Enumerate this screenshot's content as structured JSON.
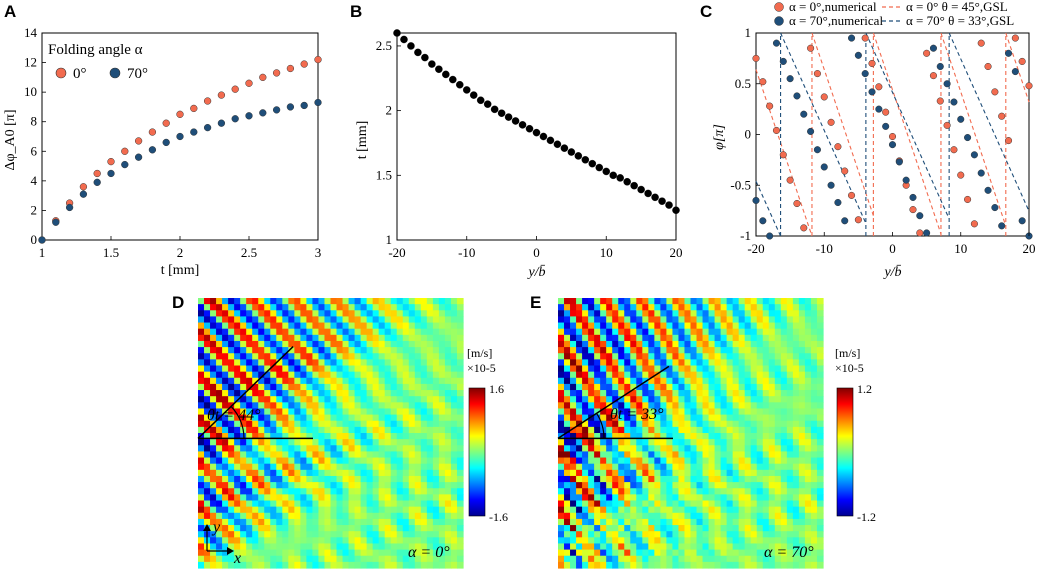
{
  "panels": {
    "A": {
      "letter": "A"
    },
    "B": {
      "letter": "B"
    },
    "C": {
      "letter": "C"
    },
    "D": {
      "letter": "D"
    },
    "E": {
      "letter": "E"
    }
  },
  "colors": {
    "orange": "#f26b4f",
    "blue": "#1f4e79",
    "black": "#000000"
  },
  "chart_data": [
    {
      "id": "A",
      "type": "scatter",
      "xlabel": "t [mm]",
      "ylabel": "Δφ_A0 [π]",
      "xlim": [
        1,
        3
      ],
      "ylim": [
        0,
        14
      ],
      "xticks": [
        "1",
        "1.5",
        "2",
        "2.5",
        "3"
      ],
      "yticks": [
        "0",
        "2",
        "4",
        "6",
        "8",
        "10",
        "12",
        "14"
      ],
      "legend_title": "Folding angle α",
      "series": [
        {
          "name": "0°",
          "color": "#f26b4f",
          "x": [
            1.0,
            1.1,
            1.2,
            1.3,
            1.4,
            1.5,
            1.6,
            1.7,
            1.8,
            1.9,
            2.0,
            2.1,
            2.2,
            2.3,
            2.4,
            2.5,
            2.6,
            2.7,
            2.8,
            2.9,
            3.0
          ],
          "y": [
            0.0,
            1.3,
            2.5,
            3.6,
            4.5,
            5.3,
            6.0,
            6.7,
            7.3,
            7.9,
            8.5,
            8.9,
            9.4,
            9.8,
            10.2,
            10.6,
            11.0,
            11.3,
            11.6,
            11.9,
            12.2
          ]
        },
        {
          "name": "70°",
          "color": "#1f4e79",
          "x": [
            1.0,
            1.1,
            1.2,
            1.3,
            1.4,
            1.5,
            1.6,
            1.7,
            1.8,
            1.9,
            2.0,
            2.1,
            2.2,
            2.3,
            2.4,
            2.5,
            2.6,
            2.7,
            2.8,
            2.9,
            3.0
          ],
          "y": [
            0.0,
            1.2,
            2.2,
            3.1,
            3.9,
            4.5,
            5.1,
            5.6,
            6.1,
            6.6,
            7.0,
            7.3,
            7.6,
            7.9,
            8.2,
            8.4,
            8.6,
            8.8,
            9.0,
            9.1,
            9.3
          ]
        }
      ]
    },
    {
      "id": "B",
      "type": "scatter",
      "xlabel": "y/b̄",
      "ylabel": "t [mm]",
      "xlim": [
        -20,
        20
      ],
      "ylim": [
        1,
        2.6
      ],
      "xticks": [
        "-20",
        "-10",
        "0",
        "10",
        "20"
      ],
      "yticks": [
        "1",
        "1.5",
        "2",
        "2.5"
      ],
      "series": [
        {
          "name": "t",
          "color": "#000000",
          "x": [
            -20,
            -19,
            -18,
            -17,
            -16,
            -15,
            -14,
            -13,
            -12,
            -11,
            -10,
            -9,
            -8,
            -7,
            -6,
            -5,
            -4,
            -3,
            -2,
            -1,
            0,
            1,
            2,
            3,
            4,
            5,
            6,
            7,
            8,
            9,
            10,
            11,
            12,
            13,
            14,
            15,
            16,
            17,
            18,
            19,
            20
          ],
          "y": [
            2.6,
            2.55,
            2.5,
            2.45,
            2.41,
            2.36,
            2.32,
            2.28,
            2.24,
            2.2,
            2.16,
            2.12,
            2.08,
            2.05,
            2.01,
            1.98,
            1.95,
            1.92,
            1.89,
            1.86,
            1.83,
            1.8,
            1.77,
            1.74,
            1.71,
            1.68,
            1.65,
            1.62,
            1.59,
            1.56,
            1.53,
            1.5,
            1.48,
            1.45,
            1.42,
            1.39,
            1.36,
            1.33,
            1.3,
            1.27,
            1.23
          ]
        }
      ]
    },
    {
      "id": "C",
      "type": "scatter",
      "xlabel": "y/b̄",
      "ylabel": "φ[π]",
      "xlim": [
        -20,
        20
      ],
      "ylim": [
        -1,
        1
      ],
      "xticks": [
        "-20",
        "-10",
        "0",
        "10",
        "20"
      ],
      "yticks": [
        "-1",
        "-0.5",
        "0",
        "0.5",
        "1"
      ],
      "legend": [
        {
          "label": "α = 0°,numerical",
          "kind": "dot",
          "color": "#f26b4f"
        },
        {
          "label": "α = 70°,numerical",
          "kind": "dot",
          "color": "#1f4e79"
        },
        {
          "label": "α = 0°  θ = 45°,GSL",
          "kind": "dash",
          "color": "#f26b4f"
        },
        {
          "label": "α = 70°  θ = 33°,GSL",
          "kind": "dash",
          "color": "#1f4e79"
        }
      ],
      "series": [
        {
          "name": "α=0° numerical",
          "color": "#f26b4f",
          "x": [
            -20,
            -19,
            -18,
            -17,
            -16,
            -15,
            -14,
            -13,
            -12,
            -11,
            -10,
            -9,
            -8,
            -7,
            -6,
            -5,
            -4,
            -3,
            -2,
            -1,
            0,
            1,
            2,
            3,
            4,
            5,
            6,
            7,
            8,
            9,
            10,
            11,
            12,
            13,
            14,
            15,
            16,
            17,
            18,
            19,
            20
          ],
          "y": [
            0.75,
            0.52,
            0.28,
            0.04,
            -0.2,
            -0.45,
            -0.68,
            -0.92,
            0.85,
            0.6,
            0.37,
            0.12,
            -0.12,
            -0.36,
            -0.6,
            -0.84,
            0.95,
            0.7,
            0.47,
            0.22,
            -0.02,
            -0.26,
            -0.5,
            -0.74,
            -0.97,
            0.8,
            0.58,
            0.33,
            0.09,
            -0.15,
            -0.4,
            -0.64,
            -0.88,
            0.9,
            0.67,
            0.42,
            0.18,
            -0.06,
            0.95,
            0.72,
            0.48
          ]
        },
        {
          "name": "α=70° numerical",
          "color": "#1f4e79",
          "x": [
            -20,
            -19,
            -18,
            -17,
            -16,
            -15,
            -14,
            -13,
            -12,
            -11,
            -10,
            -9,
            -8,
            -7,
            -6,
            -5,
            -4,
            -3,
            -2,
            -1,
            0,
            1,
            2,
            3,
            4,
            5,
            6,
            7,
            8,
            9,
            10,
            11,
            12,
            13,
            14,
            15,
            16,
            17,
            18,
            19,
            20
          ],
          "y": [
            -0.65,
            -0.85,
            -1.0,
            0.9,
            0.72,
            0.55,
            0.38,
            0.2,
            0.03,
            -0.15,
            -0.32,
            -0.5,
            -0.67,
            -0.85,
            0.95,
            0.78,
            0.6,
            0.42,
            0.25,
            0.08,
            -0.1,
            -0.27,
            -0.45,
            -0.62,
            -0.8,
            -0.97,
            0.85,
            0.67,
            0.5,
            0.32,
            0.15,
            -0.03,
            -0.2,
            -0.38,
            -0.55,
            -0.72,
            -0.9,
            0.8,
            0.62,
            -0.85,
            -1.0
          ]
        }
      ],
      "gsl_lines": [
        {
          "color": "#f26b4f",
          "slope_per_unit": -0.2,
          "jumps": [
            -11.8,
            -2.8,
            7.1,
            16.6
          ]
        },
        {
          "color": "#1f4e79",
          "slope_per_unit": -0.15,
          "jumps": [
            -16.4,
            -3.9,
            8.3
          ]
        }
      ]
    },
    {
      "id": "D",
      "type": "heatmap",
      "unit": "[m/s]",
      "scale": "×10-5",
      "cmax": "1.6",
      "cmin": "-1.6",
      "angle_label": "θt = 44°",
      "theta_deg": 44,
      "alpha_label": "α = 0°",
      "axis_x": "x",
      "axis_y": "y"
    },
    {
      "id": "E",
      "type": "heatmap",
      "unit": "[m/s]",
      "scale": "×10-5",
      "cmax": "1.2",
      "cmin": "-1.2",
      "angle_label": "θt = 33°",
      "theta_deg": 33,
      "alpha_label": "α = 70°",
      "axis_x": "x",
      "axis_y": "y"
    }
  ]
}
